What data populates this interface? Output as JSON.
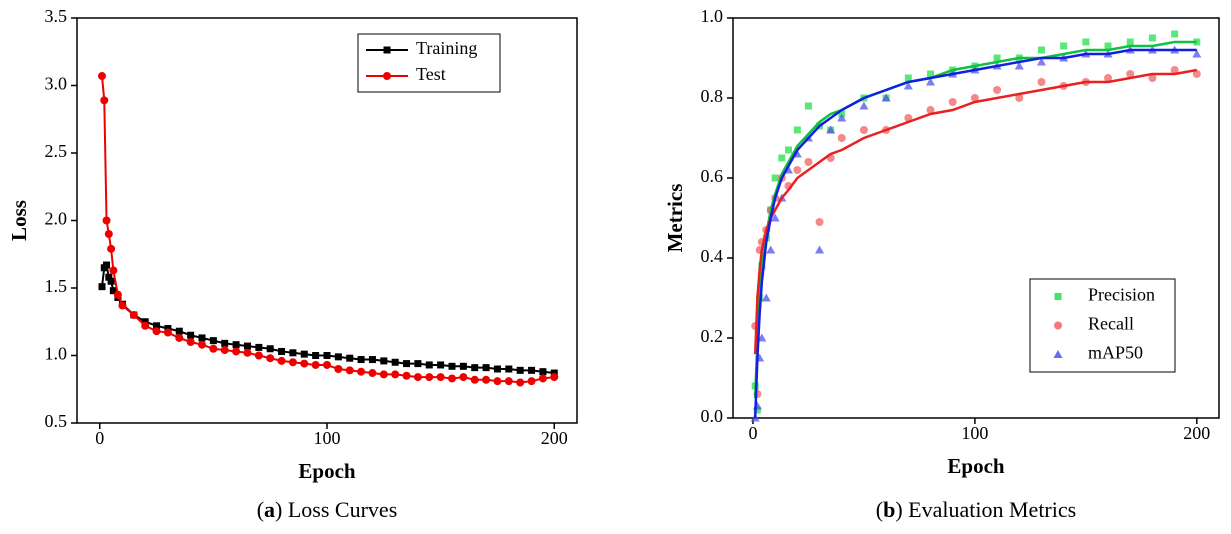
{
  "chart_data": [
    {
      "type": "line",
      "x_label": "Epoch",
      "y_label": "Loss",
      "caption": {
        "prefix": "(",
        "label": "a",
        "suffix": ") Loss Curves"
      },
      "xlim": [
        -10,
        210
      ],
      "xticks": [
        0,
        100,
        200
      ],
      "ylim": [
        0.5,
        3.5
      ],
      "yticks": [
        0.5,
        {
          "value": 1.0,
          "label": "1.0"
        },
        1.5,
        {
          "value": 2.0,
          "label": "2.0"
        },
        2.5,
        {
          "value": 3.0,
          "label": "3.0"
        },
        3.5
      ],
      "legend": "upper right",
      "x": [
        1,
        2,
        3,
        4,
        5,
        6,
        8,
        10,
        15,
        20,
        25,
        30,
        35,
        40,
        45,
        50,
        55,
        60,
        65,
        70,
        75,
        80,
        85,
        90,
        95,
        100,
        105,
        110,
        115,
        120,
        125,
        130,
        135,
        140,
        145,
        150,
        155,
        160,
        165,
        170,
        175,
        180,
        185,
        190,
        195,
        200
      ],
      "series": [
        {
          "name": "Training",
          "color": "#000000",
          "marker": "square",
          "values": [
            1.51,
            1.65,
            1.67,
            1.58,
            1.55,
            1.48,
            1.43,
            1.38,
            1.3,
            1.25,
            1.22,
            1.2,
            1.18,
            1.15,
            1.13,
            1.11,
            1.09,
            1.08,
            1.07,
            1.06,
            1.05,
            1.03,
            1.02,
            1.01,
            1.0,
            1.0,
            0.99,
            0.98,
            0.97,
            0.97,
            0.96,
            0.95,
            0.94,
            0.94,
            0.93,
            0.93,
            0.92,
            0.92,
            0.91,
            0.91,
            0.9,
            0.9,
            0.89,
            0.89,
            0.88,
            0.87
          ]
        },
        {
          "name": "Test",
          "color": "#ee0000",
          "marker": "circle",
          "values": [
            3.07,
            2.89,
            2.0,
            1.9,
            1.79,
            1.63,
            1.45,
            1.37,
            1.3,
            1.22,
            1.18,
            1.17,
            1.13,
            1.1,
            1.08,
            1.05,
            1.04,
            1.03,
            1.02,
            1.0,
            0.98,
            0.96,
            0.95,
            0.94,
            0.93,
            0.93,
            0.9,
            0.89,
            0.88,
            0.87,
            0.86,
            0.86,
            0.85,
            0.84,
            0.84,
            0.84,
            0.83,
            0.84,
            0.82,
            0.82,
            0.81,
            0.81,
            0.8,
            0.81,
            0.83,
            0.84
          ]
        }
      ]
    },
    {
      "type": "scatter",
      "x_label": "Epoch",
      "y_label": "Metrics",
      "caption": {
        "prefix": "(",
        "label": "b",
        "suffix": ") Evaluation Metrics"
      },
      "xlim": [
        -9,
        210
      ],
      "xticks": [
        0,
        100,
        200
      ],
      "ylim": [
        0,
        1
      ],
      "yticks": [
        {
          "value": 0,
          "label": "0.0"
        },
        0.2,
        0.4,
        0.6,
        0.8,
        {
          "value": 1,
          "label": "1.0"
        }
      ],
      "legend": "lower right",
      "x": [
        1,
        2,
        3,
        4,
        6,
        8,
        10,
        13,
        16,
        20,
        25,
        30,
        35,
        40,
        50,
        60,
        70,
        80,
        90,
        100,
        110,
        120,
        130,
        140,
        150,
        160,
        170,
        180,
        190,
        200
      ],
      "series": [
        {
          "name": "Precision",
          "color": "#22e04a",
          "marker": "square",
          "fit_color": "#10c040",
          "values": [
            0.08,
            0.02,
            0.3,
            0.38,
            0.45,
            0.52,
            0.6,
            0.65,
            0.67,
            0.72,
            0.78,
            0.73,
            0.72,
            0.76,
            0.8,
            0.8,
            0.85,
            0.86,
            0.87,
            0.88,
            0.9,
            0.9,
            0.92,
            0.93,
            0.94,
            0.93,
            0.94,
            0.95,
            0.96,
            0.94
          ],
          "fit": [
            0.05,
            0.2,
            0.3,
            0.37,
            0.46,
            0.52,
            0.56,
            0.61,
            0.64,
            0.68,
            0.71,
            0.74,
            0.76,
            0.77,
            0.8,
            0.82,
            0.84,
            0.85,
            0.87,
            0.88,
            0.89,
            0.9,
            0.9,
            0.91,
            0.92,
            0.92,
            0.93,
            0.93,
            0.94,
            0.94
          ]
        },
        {
          "name": "Recall",
          "color": "#f26060",
          "marker": "circle",
          "fit_color": "#e82020",
          "values": [
            0.23,
            0.06,
            0.42,
            0.44,
            0.47,
            0.52,
            0.55,
            0.6,
            0.58,
            0.62,
            0.64,
            0.49,
            0.65,
            0.7,
            0.72,
            0.72,
            0.75,
            0.77,
            0.79,
            0.8,
            0.82,
            0.8,
            0.84,
            0.83,
            0.84,
            0.85,
            0.86,
            0.85,
            0.87,
            0.86
          ],
          "fit": [
            0.16,
            0.3,
            0.37,
            0.42,
            0.47,
            0.5,
            0.52,
            0.55,
            0.57,
            0.6,
            0.62,
            0.64,
            0.66,
            0.67,
            0.7,
            0.72,
            0.74,
            0.76,
            0.77,
            0.79,
            0.8,
            0.81,
            0.82,
            0.83,
            0.84,
            0.84,
            0.85,
            0.86,
            0.86,
            0.87
          ]
        },
        {
          "name": "mAP50",
          "color": "#5050f0",
          "marker": "triangle",
          "fit_color": "#1020e0",
          "values": [
            0.0,
            0.03,
            0.15,
            0.2,
            0.3,
            0.42,
            0.5,
            0.55,
            0.62,
            0.66,
            0.7,
            0.42,
            0.72,
            0.75,
            0.78,
            0.8,
            0.83,
            0.84,
            0.86,
            0.87,
            0.88,
            0.88,
            0.89,
            0.9,
            0.91,
            0.91,
            0.92,
            0.92,
            0.92,
            0.91
          ],
          "fit": [
            0.0,
            0.15,
            0.26,
            0.34,
            0.44,
            0.5,
            0.55,
            0.6,
            0.63,
            0.67,
            0.7,
            0.73,
            0.75,
            0.77,
            0.8,
            0.82,
            0.84,
            0.85,
            0.86,
            0.87,
            0.88,
            0.89,
            0.9,
            0.9,
            0.91,
            0.91,
            0.92,
            0.92,
            0.92,
            0.92
          ]
        }
      ]
    }
  ]
}
